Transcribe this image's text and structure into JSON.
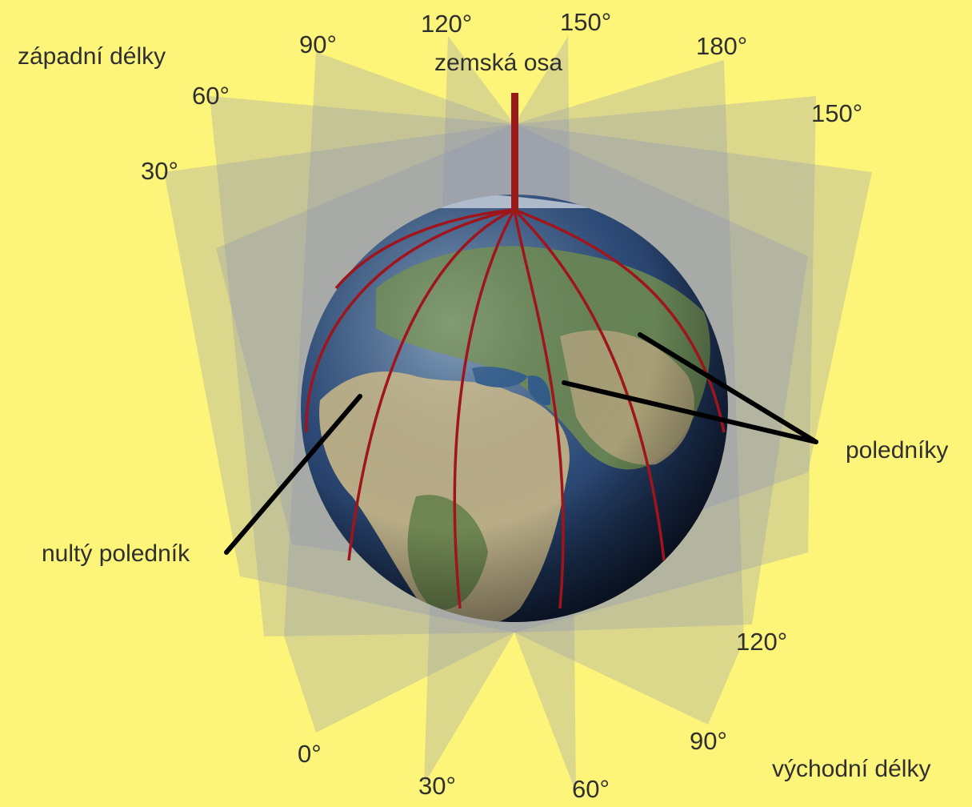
{
  "labels": {
    "west_longitude": "západní délky",
    "east_longitude": "východní délky",
    "earth_axis": "zemská osa",
    "prime_meridian": "nultý poledník",
    "meridians": "poledníky"
  },
  "degree_labels": {
    "w30": "30°",
    "w60": "60°",
    "w90": "90°",
    "w120": "120°",
    "w150": "150°",
    "d180": "180°",
    "e150": "150°",
    "e120": "120°",
    "e90": "90°",
    "e60": "60°",
    "e30": "30°",
    "d0": "0°"
  },
  "colors": {
    "background": "#fdf47a",
    "plane_fill": "#8a8fb8",
    "meridian_line": "#a0141c",
    "axis": "#9a1a1a",
    "leader_line": "#000000"
  },
  "icons": {
    "globe": "earth-globe-icon"
  }
}
